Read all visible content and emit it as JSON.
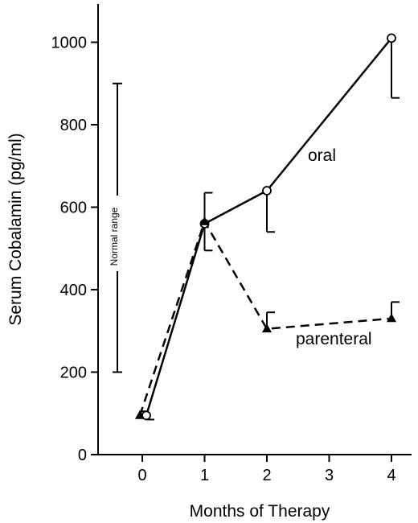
{
  "chart_data": {
    "type": "line",
    "xlabel": "Months of Therapy",
    "ylabel": "Serum Cobalamin (pg/ml)",
    "x_ticks": [
      0,
      1,
      2,
      3,
      4
    ],
    "y_ticks": [
      0,
      200,
      400,
      600,
      800,
      1000
    ],
    "xlim": [
      -0.6,
      4.3
    ],
    "ylim": [
      0,
      1100
    ],
    "grid": false,
    "legend": "none (series labeled directly on plot)",
    "normal_range": {
      "label": "Normal range",
      "low": 200,
      "high": 900
    },
    "series": [
      {
        "name": "oral",
        "line_style": "solid",
        "marker": "open-circle",
        "x": [
          0,
          1,
          2,
          4
        ],
        "y": [
          95,
          560,
          640,
          1010
        ],
        "error_low": [
          85,
          495,
          540,
          865
        ],
        "error_high": [
          null,
          null,
          null,
          null
        ]
      },
      {
        "name": "parenteral",
        "line_style": "dashed",
        "marker": "filled-triangle",
        "x": [
          0,
          1,
          2,
          4
        ],
        "y": [
          95,
          565,
          305,
          330
        ],
        "error_low": [
          null,
          null,
          null,
          null
        ],
        "error_high": [
          105,
          635,
          345,
          370
        ]
      }
    ]
  }
}
